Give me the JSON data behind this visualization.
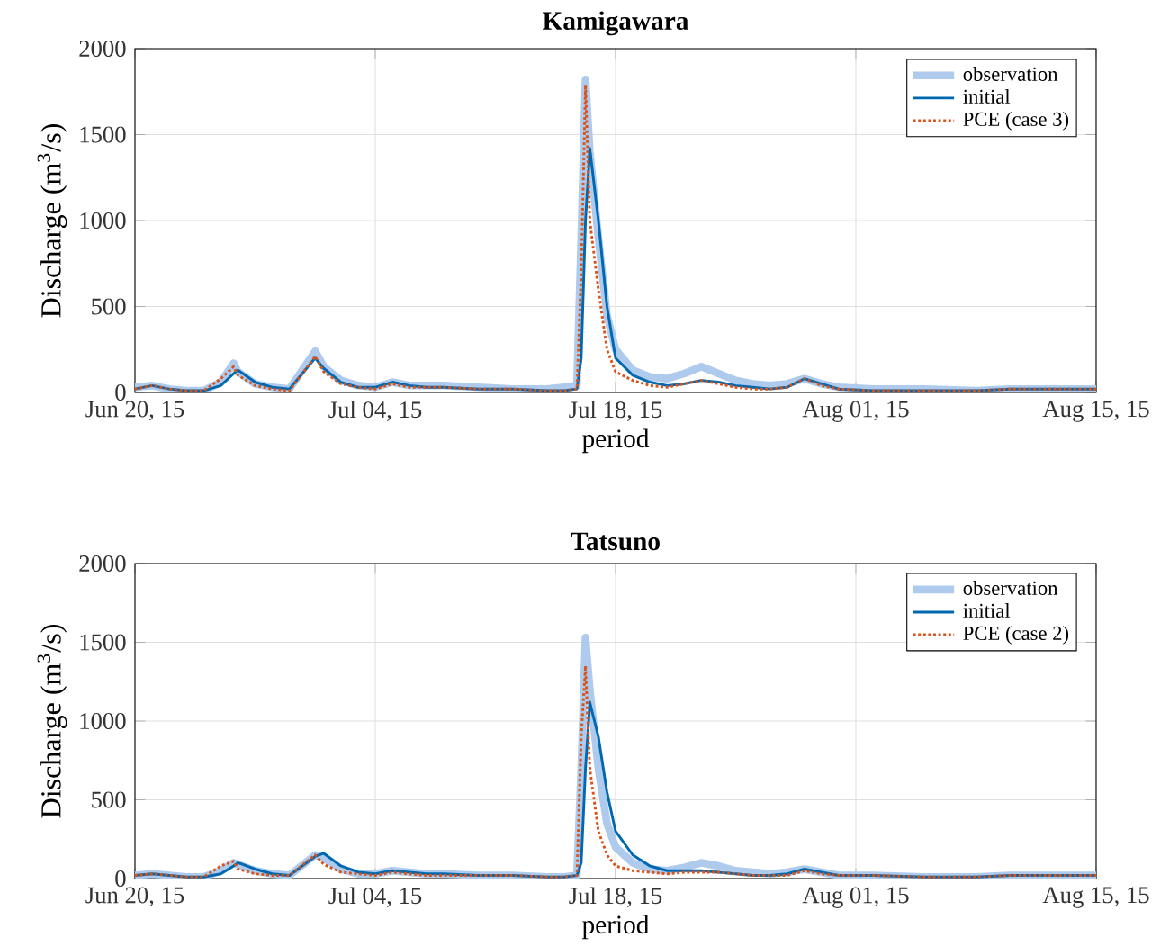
{
  "chart_data": [
    {
      "type": "line",
      "title": "Kamigawara",
      "xlabel": "period",
      "ylabel": "Discharge (m$^{3}$/s)",
      "x": [
        "2015-06-20",
        "2015-06-21",
        "2015-06-22",
        "2015-06-23",
        "2015-06-24",
        "2015-06-25",
        "2015-06-25T18:00",
        "2015-06-26",
        "2015-06-27",
        "2015-06-28",
        "2015-06-29",
        "2015-06-30T12:00",
        "2015-07-01",
        "2015-07-02",
        "2015-07-03",
        "2015-07-04",
        "2015-07-05",
        "2015-07-06",
        "2015-07-07",
        "2015-07-08",
        "2015-07-10",
        "2015-07-12",
        "2015-07-14",
        "2015-07-15",
        "2015-07-15T18:00",
        "2015-07-16T00:00",
        "2015-07-16T06:00",
        "2015-07-16T12:00",
        "2015-07-17",
        "2015-07-17T12:00",
        "2015-07-18",
        "2015-07-19",
        "2015-07-20",
        "2015-07-21",
        "2015-07-22",
        "2015-07-23",
        "2015-07-24",
        "2015-07-25",
        "2015-07-26",
        "2015-07-27",
        "2015-07-28",
        "2015-07-29",
        "2015-07-30",
        "2015-07-31",
        "2015-08-02",
        "2015-08-05",
        "2015-08-08",
        "2015-08-10",
        "2015-08-12",
        "2015-08-15"
      ],
      "series": [
        {
          "name": "observation",
          "color": "#aecbee",
          "line_style": "solid",
          "values": [
            30,
            40,
            20,
            10,
            10,
            60,
            170,
            120,
            50,
            30,
            20,
            240,
            150,
            70,
            40,
            30,
            60,
            40,
            40,
            40,
            30,
            20,
            20,
            30,
            40,
            900,
            1820,
            1400,
            900,
            450,
            250,
            130,
            90,
            80,
            110,
            150,
            110,
            70,
            50,
            40,
            50,
            80,
            50,
            30,
            20,
            20,
            10,
            20,
            20,
            20
          ]
        },
        {
          "name": "initial",
          "color": "#0068b0",
          "line_style": "solid",
          "values": [
            20,
            40,
            20,
            10,
            10,
            40,
            110,
            130,
            60,
            30,
            20,
            200,
            140,
            60,
            30,
            30,
            60,
            40,
            30,
            30,
            20,
            20,
            10,
            10,
            20,
            200,
            1000,
            1420,
            1000,
            500,
            200,
            100,
            60,
            40,
            50,
            70,
            60,
            40,
            30,
            20,
            30,
            80,
            50,
            20,
            10,
            10,
            10,
            20,
            20,
            20
          ]
        },
        {
          "name": "PCE (case 3)",
          "color": "#d95319",
          "line_style": "dotted",
          "values": [
            20,
            40,
            20,
            10,
            10,
            80,
            150,
            100,
            40,
            20,
            10,
            210,
            120,
            50,
            30,
            20,
            50,
            30,
            30,
            30,
            20,
            20,
            10,
            10,
            20,
            700,
            1790,
            1000,
            600,
            250,
            120,
            70,
            40,
            30,
            50,
            70,
            50,
            30,
            20,
            20,
            30,
            80,
            40,
            20,
            10,
            10,
            10,
            20,
            20,
            20
          ]
        }
      ],
      "xlim": [
        "2015-06-20",
        "2015-08-15"
      ],
      "xticks": [
        {
          "value": "2015-06-20",
          "label": "Jun 20, 15"
        },
        {
          "value": "2015-07-04",
          "label": "Jul 04, 15"
        },
        {
          "value": "2015-07-18",
          "label": "Jul 18, 15"
        },
        {
          "value": "2015-08-01",
          "label": "Aug 01, 15"
        },
        {
          "value": "2015-08-15",
          "label": "Aug 15, 15"
        }
      ],
      "ylim": [
        0,
        2000
      ],
      "yticks": [
        0,
        500,
        1000,
        1500,
        2000
      ],
      "grid": true,
      "legend": "top right"
    },
    {
      "type": "line",
      "title": "Tatsuno",
      "xlabel": "period",
      "ylabel": "Discharge (m$^{3}$/s)",
      "x": [
        "2015-06-20",
        "2015-06-21",
        "2015-06-22",
        "2015-06-23",
        "2015-06-24",
        "2015-06-25",
        "2015-06-25T18:00",
        "2015-06-26",
        "2015-06-27",
        "2015-06-28",
        "2015-06-29",
        "2015-06-30T12:00",
        "2015-07-01",
        "2015-07-02",
        "2015-07-03",
        "2015-07-04",
        "2015-07-05",
        "2015-07-06",
        "2015-07-07",
        "2015-07-08",
        "2015-07-10",
        "2015-07-12",
        "2015-07-14",
        "2015-07-15",
        "2015-07-15T18:00",
        "2015-07-16T00:00",
        "2015-07-16T06:00",
        "2015-07-16T12:00",
        "2015-07-17",
        "2015-07-17T12:00",
        "2015-07-18",
        "2015-07-19",
        "2015-07-20",
        "2015-07-21",
        "2015-07-22",
        "2015-07-23",
        "2015-07-24",
        "2015-07-25",
        "2015-07-26",
        "2015-07-27",
        "2015-07-28",
        "2015-07-29",
        "2015-07-30",
        "2015-07-31",
        "2015-08-02",
        "2015-08-05",
        "2015-08-08",
        "2015-08-10",
        "2015-08-12",
        "2015-08-15"
      ],
      "series": [
        {
          "name": "observation",
          "color": "#aecbee",
          "line_style": "solid",
          "values": [
            20,
            30,
            20,
            10,
            10,
            50,
            100,
            90,
            50,
            30,
            20,
            150,
            130,
            60,
            30,
            30,
            50,
            40,
            30,
            30,
            20,
            20,
            10,
            10,
            20,
            700,
            1530,
            1200,
            700,
            350,
            200,
            100,
            60,
            50,
            70,
            100,
            80,
            50,
            40,
            30,
            40,
            60,
            40,
            20,
            20,
            10,
            10,
            20,
            20,
            20
          ]
        },
        {
          "name": "initial",
          "color": "#0068b0",
          "line_style": "solid",
          "values": [
            20,
            30,
            20,
            10,
            10,
            30,
            80,
            100,
            60,
            30,
            20,
            140,
            160,
            80,
            40,
            30,
            50,
            40,
            30,
            30,
            20,
            20,
            10,
            10,
            20,
            100,
            700,
            1120,
            900,
            550,
            300,
            150,
            80,
            50,
            50,
            50,
            40,
            30,
            20,
            20,
            30,
            60,
            40,
            20,
            20,
            10,
            10,
            20,
            20,
            20
          ]
        },
        {
          "name": "PCE (case 2)",
          "color": "#d95319",
          "line_style": "dotted",
          "values": [
            20,
            30,
            20,
            10,
            10,
            80,
            110,
            60,
            30,
            20,
            20,
            150,
            90,
            40,
            30,
            20,
            40,
            30,
            20,
            20,
            20,
            20,
            10,
            10,
            20,
            900,
            1350,
            700,
            300,
            150,
            80,
            50,
            40,
            30,
            40,
            40,
            40,
            30,
            20,
            20,
            20,
            50,
            30,
            20,
            20,
            10,
            10,
            20,
            20,
            20
          ]
        }
      ],
      "xlim": [
        "2015-06-20",
        "2015-08-15"
      ],
      "xticks": [
        {
          "value": "2015-06-20",
          "label": "Jun 20, 15"
        },
        {
          "value": "2015-07-04",
          "label": "Jul 04, 15"
        },
        {
          "value": "2015-07-18",
          "label": "Jul 18, 15"
        },
        {
          "value": "2015-08-01",
          "label": "Aug 01, 15"
        },
        {
          "value": "2015-08-15",
          "label": "Aug 15, 15"
        }
      ],
      "ylim": [
        0,
        2000
      ],
      "yticks": [
        0,
        500,
        1000,
        1500,
        2000
      ],
      "grid": true,
      "legend": "top right"
    }
  ]
}
